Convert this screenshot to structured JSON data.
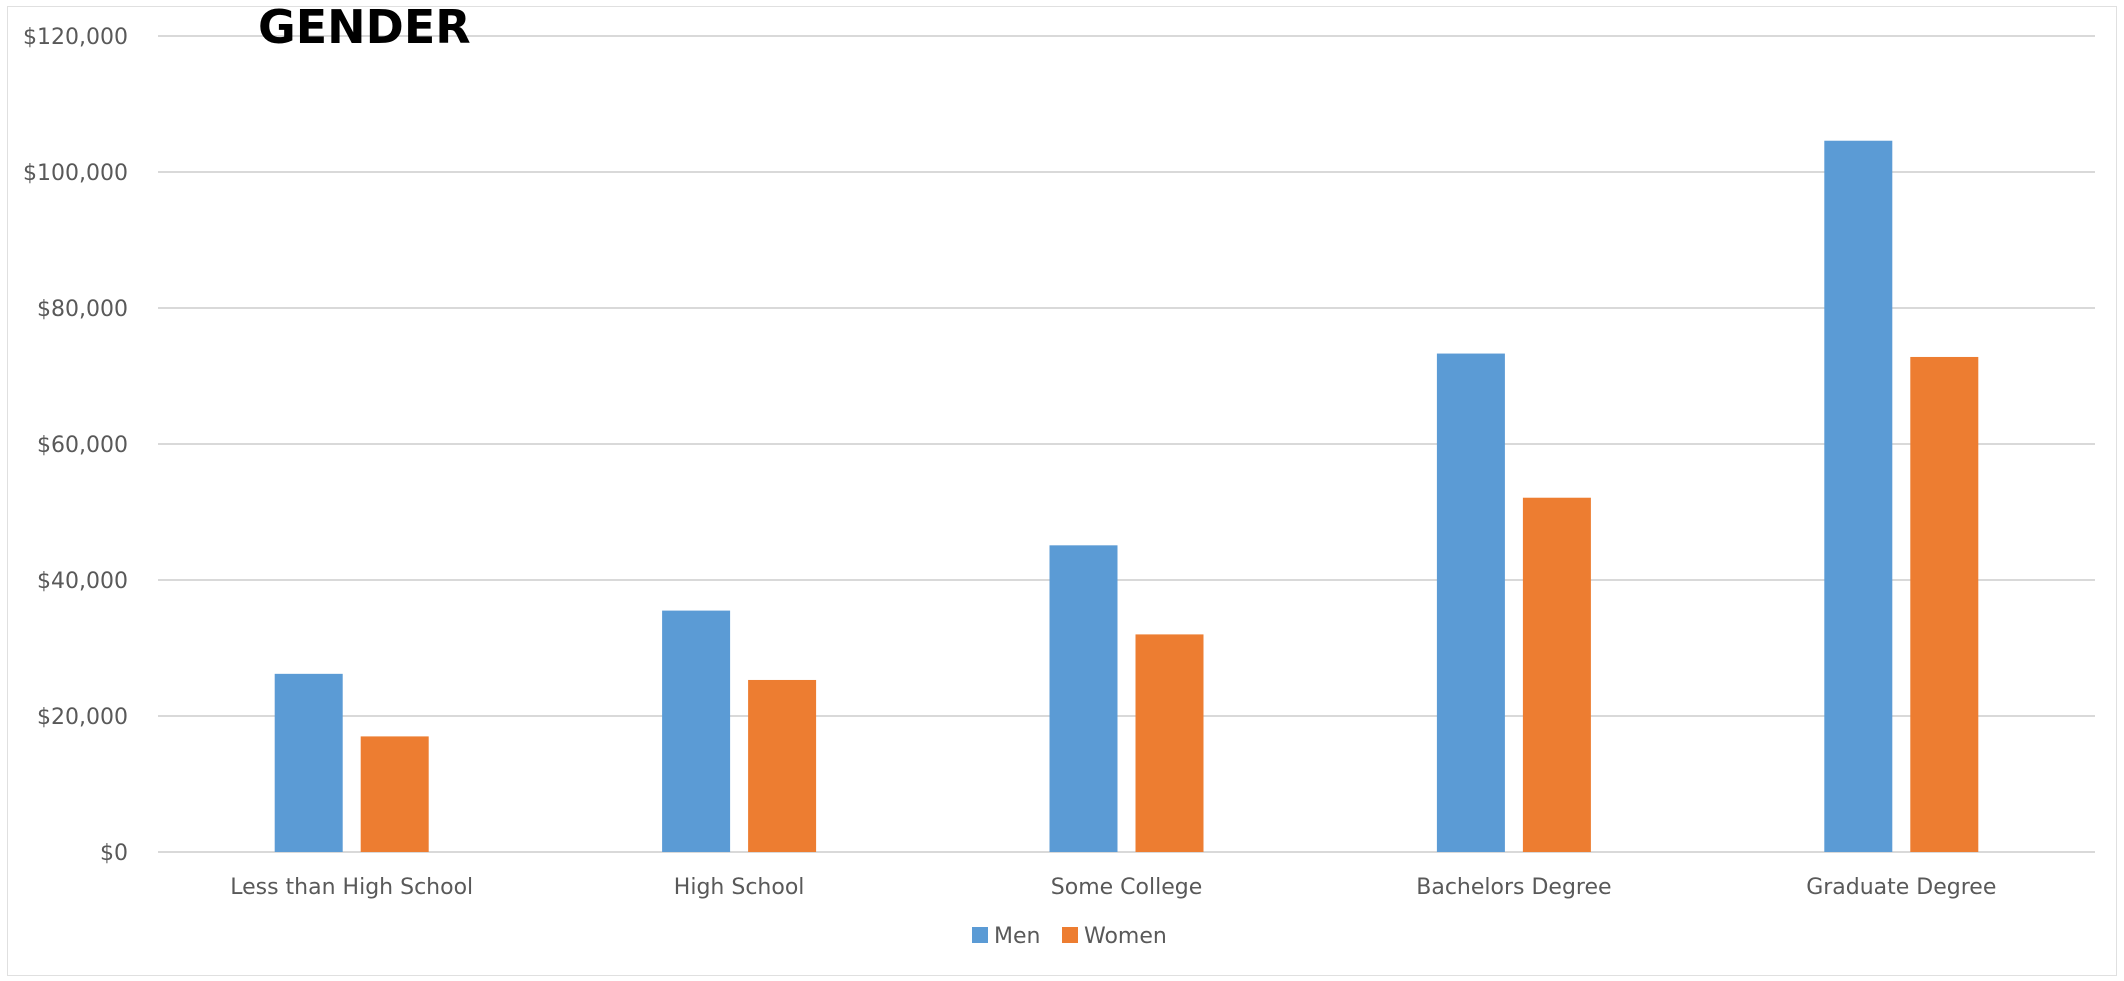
{
  "chart_data": {
    "type": "bar",
    "title": "GENDER",
    "categories": [
      "Less than High School",
      "High School",
      "Some College",
      "Bachelors Degree",
      "Graduate Degree"
    ],
    "series": [
      {
        "name": "Men",
        "color": "#5B9BD5",
        "values": [
          26200,
          35500,
          45100,
          73300,
          104600
        ]
      },
      {
        "name": "Women",
        "color": "#ED7D31",
        "values": [
          17000,
          25300,
          32000,
          52100,
          72800
        ]
      }
    ],
    "ylim": [
      0,
      120000
    ],
    "yticks": [
      "$0",
      "$20,000",
      "$40,000",
      "$60,000",
      "$80,000",
      "$100,000",
      "$120,000"
    ],
    "ytick_values": [
      0,
      20000,
      40000,
      60000,
      80000,
      100000,
      120000
    ],
    "grid": true,
    "legend_position": "bottom",
    "gridline_color": "#d9d9d9"
  }
}
